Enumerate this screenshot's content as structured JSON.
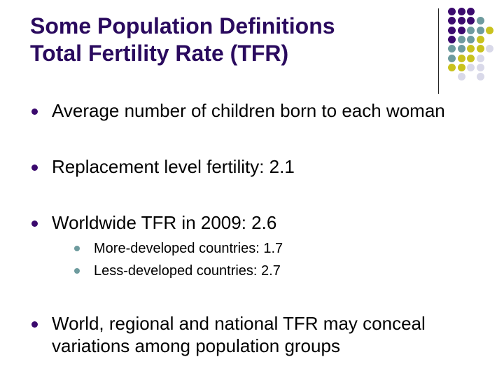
{
  "slide": {
    "title_line1": "Some Population Definitions",
    "title_line2": "Total Fertility Rate (TFR)",
    "bullets": [
      {
        "text": "Average number of children born to each woman"
      },
      {
        "text": "Replacement level fertility: 2.1"
      },
      {
        "text": "Worldwide TFR in 2009: 2.6",
        "sub": [
          {
            "text": "More-developed countries: 1.7"
          },
          {
            "text": "Less-developed countries: 2.7"
          }
        ]
      },
      {
        "text": "World, regional and national TFR may conceal variations among population groups"
      }
    ]
  },
  "colors": {
    "title": "#2a0a5e",
    "purple": "#3b0a6e",
    "teal": "#6e9b9e",
    "yellow": "#c9c21e",
    "lavender": "#d9d9e9"
  }
}
